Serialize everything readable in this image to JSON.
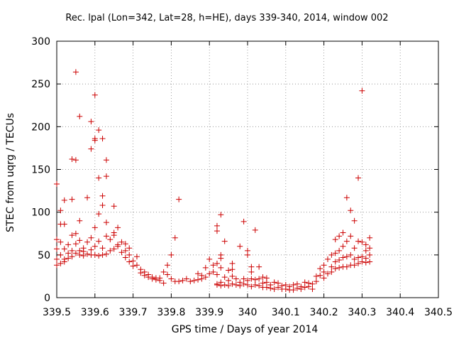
{
  "chart_data": {
    "type": "scatter",
    "title": "Rec. lpal (Lon=342, Lat=28, h=HE), days 339-340, 2014, window 002",
    "xlabel": "GPS time / Days of year 2014",
    "ylabel": "STEC from uqrg / TECUs",
    "xlim": [
      339.5,
      340.5
    ],
    "ylim": [
      0,
      300
    ],
    "xticks": [
      339.5,
      339.6,
      339.7,
      339.8,
      339.9,
      340.0,
      340.1,
      340.2,
      340.3,
      340.4,
      340.5
    ],
    "xtick_labels": [
      "339.5",
      "339.6",
      "339.7",
      "339.8",
      "339.9",
      "340",
      "340.1",
      "340.2",
      "340.3",
      "340.4",
      "340.5"
    ],
    "yticks": [
      0,
      50,
      100,
      150,
      200,
      250,
      300
    ],
    "ytick_labels": [
      "0",
      "50",
      "100",
      "150",
      "200",
      "250",
      "300"
    ],
    "grid": true,
    "marker": "+",
    "series": [
      {
        "color": "#cc0000",
        "points": [
          [
            339.5,
            133
          ],
          [
            339.5,
            68
          ],
          [
            339.5,
            57
          ],
          [
            339.5,
            45
          ],
          [
            339.5,
            38
          ],
          [
            339.51,
            102
          ],
          [
            339.51,
            86
          ],
          [
            339.51,
            65
          ],
          [
            339.51,
            50
          ],
          [
            339.51,
            40
          ],
          [
            339.52,
            86
          ],
          [
            339.52,
            114
          ],
          [
            339.52,
            57
          ],
          [
            339.52,
            45
          ],
          [
            339.52,
            42
          ],
          [
            339.53,
            52
          ],
          [
            339.53,
            46
          ],
          [
            339.53,
            62
          ],
          [
            339.54,
            162
          ],
          [
            339.54,
            115
          ],
          [
            339.54,
            73
          ],
          [
            339.54,
            55
          ],
          [
            339.54,
            48
          ],
          [
            339.55,
            264
          ],
          [
            339.55,
            161
          ],
          [
            339.55,
            75
          ],
          [
            339.55,
            63
          ],
          [
            339.55,
            52
          ],
          [
            339.56,
            212
          ],
          [
            339.56,
            90
          ],
          [
            339.56,
            67
          ],
          [
            339.56,
            55
          ],
          [
            339.56,
            50
          ],
          [
            339.57,
            54
          ],
          [
            339.57,
            58
          ],
          [
            339.57,
            49
          ],
          [
            339.58,
            117
          ],
          [
            339.58,
            65
          ],
          [
            339.58,
            51
          ],
          [
            339.59,
            206
          ],
          [
            339.59,
            174
          ],
          [
            339.59,
            70
          ],
          [
            339.59,
            56
          ],
          [
            339.59,
            50
          ],
          [
            339.6,
            237
          ],
          [
            339.6,
            186
          ],
          [
            339.6,
            184
          ],
          [
            339.6,
            82
          ],
          [
            339.6,
            60
          ],
          [
            339.6,
            50
          ],
          [
            339.61,
            196
          ],
          [
            339.61,
            140
          ],
          [
            339.61,
            98
          ],
          [
            339.61,
            66
          ],
          [
            339.61,
            49
          ],
          [
            339.62,
            186
          ],
          [
            339.62,
            119
          ],
          [
            339.62,
            108
          ],
          [
            339.62,
            58
          ],
          [
            339.62,
            50
          ],
          [
            339.63,
            161
          ],
          [
            339.63,
            142
          ],
          [
            339.63,
            88
          ],
          [
            339.63,
            72
          ],
          [
            339.63,
            51
          ],
          [
            339.64,
            68
          ],
          [
            339.64,
            55
          ],
          [
            339.65,
            107
          ],
          [
            339.65,
            76
          ],
          [
            339.65,
            73
          ],
          [
            339.65,
            57
          ],
          [
            339.66,
            82
          ],
          [
            339.66,
            62
          ],
          [
            339.66,
            60
          ],
          [
            339.67,
            65
          ],
          [
            339.67,
            53
          ],
          [
            339.68,
            63
          ],
          [
            339.68,
            55
          ],
          [
            339.68,
            47
          ],
          [
            339.69,
            58
          ],
          [
            339.69,
            50
          ],
          [
            339.69,
            42
          ],
          [
            339.7,
            43
          ],
          [
            339.7,
            37
          ],
          [
            339.71,
            48
          ],
          [
            339.71,
            38
          ],
          [
            339.72,
            33
          ],
          [
            339.72,
            29
          ],
          [
            339.73,
            30
          ],
          [
            339.73,
            26
          ],
          [
            339.74,
            27
          ],
          [
            339.74,
            24
          ],
          [
            339.75,
            24
          ],
          [
            339.75,
            22
          ],
          [
            339.76,
            23
          ],
          [
            339.76,
            21
          ],
          [
            339.77,
            23
          ],
          [
            339.77,
            20
          ],
          [
            339.78,
            30
          ],
          [
            339.78,
            17
          ],
          [
            339.79,
            38
          ],
          [
            339.79,
            27
          ],
          [
            339.8,
            50
          ],
          [
            339.8,
            22
          ],
          [
            339.81,
            70
          ],
          [
            339.81,
            19
          ],
          [
            339.82,
            115
          ],
          [
            339.82,
            19
          ],
          [
            339.83,
            20
          ],
          [
            339.84,
            22
          ],
          [
            339.85,
            19
          ],
          [
            339.86,
            20
          ],
          [
            339.87,
            21
          ],
          [
            339.87,
            28
          ],
          [
            339.88,
            22
          ],
          [
            339.88,
            26
          ],
          [
            339.89,
            35
          ],
          [
            339.89,
            24
          ],
          [
            339.9,
            45
          ],
          [
            339.9,
            28
          ],
          [
            339.91,
            38
          ],
          [
            339.91,
            30
          ],
          [
            339.92,
            84
          ],
          [
            339.92,
            78
          ],
          [
            339.92,
            40
          ],
          [
            339.92,
            27
          ],
          [
            339.92,
            16
          ],
          [
            339.92,
            15
          ],
          [
            339.93,
            97
          ],
          [
            339.93,
            50
          ],
          [
            339.93,
            46
          ],
          [
            339.93,
            35
          ],
          [
            339.93,
            18
          ],
          [
            339.93,
            14
          ],
          [
            339.94,
            66
          ],
          [
            339.94,
            24
          ],
          [
            339.94,
            15
          ],
          [
            339.95,
            32
          ],
          [
            339.95,
            20
          ],
          [
            339.95,
            14
          ],
          [
            339.96,
            40
          ],
          [
            339.96,
            33
          ],
          [
            339.96,
            25
          ],
          [
            339.96,
            16
          ],
          [
            339.97,
            22
          ],
          [
            339.97,
            15
          ],
          [
            339.98,
            60
          ],
          [
            339.98,
            18
          ],
          [
            339.98,
            14
          ],
          [
            339.99,
            89
          ],
          [
            339.99,
            22
          ],
          [
            339.99,
            16
          ],
          [
            340.0,
            55
          ],
          [
            340.0,
            50
          ],
          [
            340.0,
            20
          ],
          [
            340.0,
            15
          ],
          [
            340.01,
            36
          ],
          [
            340.01,
            30
          ],
          [
            340.01,
            22
          ],
          [
            340.01,
            13
          ],
          [
            340.02,
            79
          ],
          [
            340.02,
            21
          ],
          [
            340.02,
            15
          ],
          [
            340.03,
            36
          ],
          [
            340.03,
            22
          ],
          [
            340.03,
            14
          ],
          [
            340.04,
            24
          ],
          [
            340.04,
            17
          ],
          [
            340.04,
            12
          ],
          [
            340.05,
            23
          ],
          [
            340.05,
            18
          ],
          [
            340.05,
            12
          ],
          [
            340.06,
            15
          ],
          [
            340.06,
            11
          ],
          [
            340.07,
            18
          ],
          [
            340.07,
            10
          ],
          [
            340.08,
            17
          ],
          [
            340.08,
            12
          ],
          [
            340.09,
            14
          ],
          [
            340.09,
            10
          ],
          [
            340.1,
            15
          ],
          [
            340.1,
            10
          ],
          [
            340.11,
            13
          ],
          [
            340.11,
            9
          ],
          [
            340.12,
            15
          ],
          [
            340.12,
            9
          ],
          [
            340.13,
            16
          ],
          [
            340.13,
            11
          ],
          [
            340.14,
            13
          ],
          [
            340.14,
            10
          ],
          [
            340.15,
            18
          ],
          [
            340.15,
            12
          ],
          [
            340.16,
            17
          ],
          [
            340.16,
            13
          ],
          [
            340.17,
            16
          ],
          [
            340.17,
            10
          ],
          [
            340.18,
            25
          ],
          [
            340.18,
            19
          ],
          [
            340.19,
            34
          ],
          [
            340.19,
            26
          ],
          [
            340.2,
            38
          ],
          [
            340.2,
            30
          ],
          [
            340.2,
            23
          ],
          [
            340.21,
            45
          ],
          [
            340.21,
            28
          ],
          [
            340.22,
            50
          ],
          [
            340.22,
            36
          ],
          [
            340.22,
            30
          ],
          [
            340.23,
            68
          ],
          [
            340.23,
            52
          ],
          [
            340.23,
            42
          ],
          [
            340.23,
            34
          ],
          [
            340.24,
            72
          ],
          [
            340.24,
            55
          ],
          [
            340.24,
            44
          ],
          [
            340.24,
            35
          ],
          [
            340.25,
            76
          ],
          [
            340.25,
            60
          ],
          [
            340.25,
            47
          ],
          [
            340.25,
            36
          ],
          [
            340.26,
            117
          ],
          [
            340.26,
            66
          ],
          [
            340.26,
            48
          ],
          [
            340.26,
            36
          ],
          [
            340.27,
            102
          ],
          [
            340.27,
            72
          ],
          [
            340.27,
            50
          ],
          [
            340.27,
            38
          ],
          [
            340.28,
            90
          ],
          [
            340.28,
            58
          ],
          [
            340.28,
            45
          ],
          [
            340.28,
            38
          ],
          [
            340.29,
            140
          ],
          [
            340.29,
            66
          ],
          [
            340.29,
            47
          ],
          [
            340.29,
            40
          ],
          [
            340.3,
            242
          ],
          [
            340.3,
            65
          ],
          [
            340.3,
            48
          ],
          [
            340.3,
            42
          ],
          [
            340.31,
            62
          ],
          [
            340.31,
            55
          ],
          [
            340.31,
            46
          ],
          [
            340.31,
            41
          ],
          [
            340.32,
            70
          ],
          [
            340.32,
            58
          ],
          [
            340.32,
            50
          ],
          [
            340.32,
            42
          ]
        ]
      }
    ]
  }
}
